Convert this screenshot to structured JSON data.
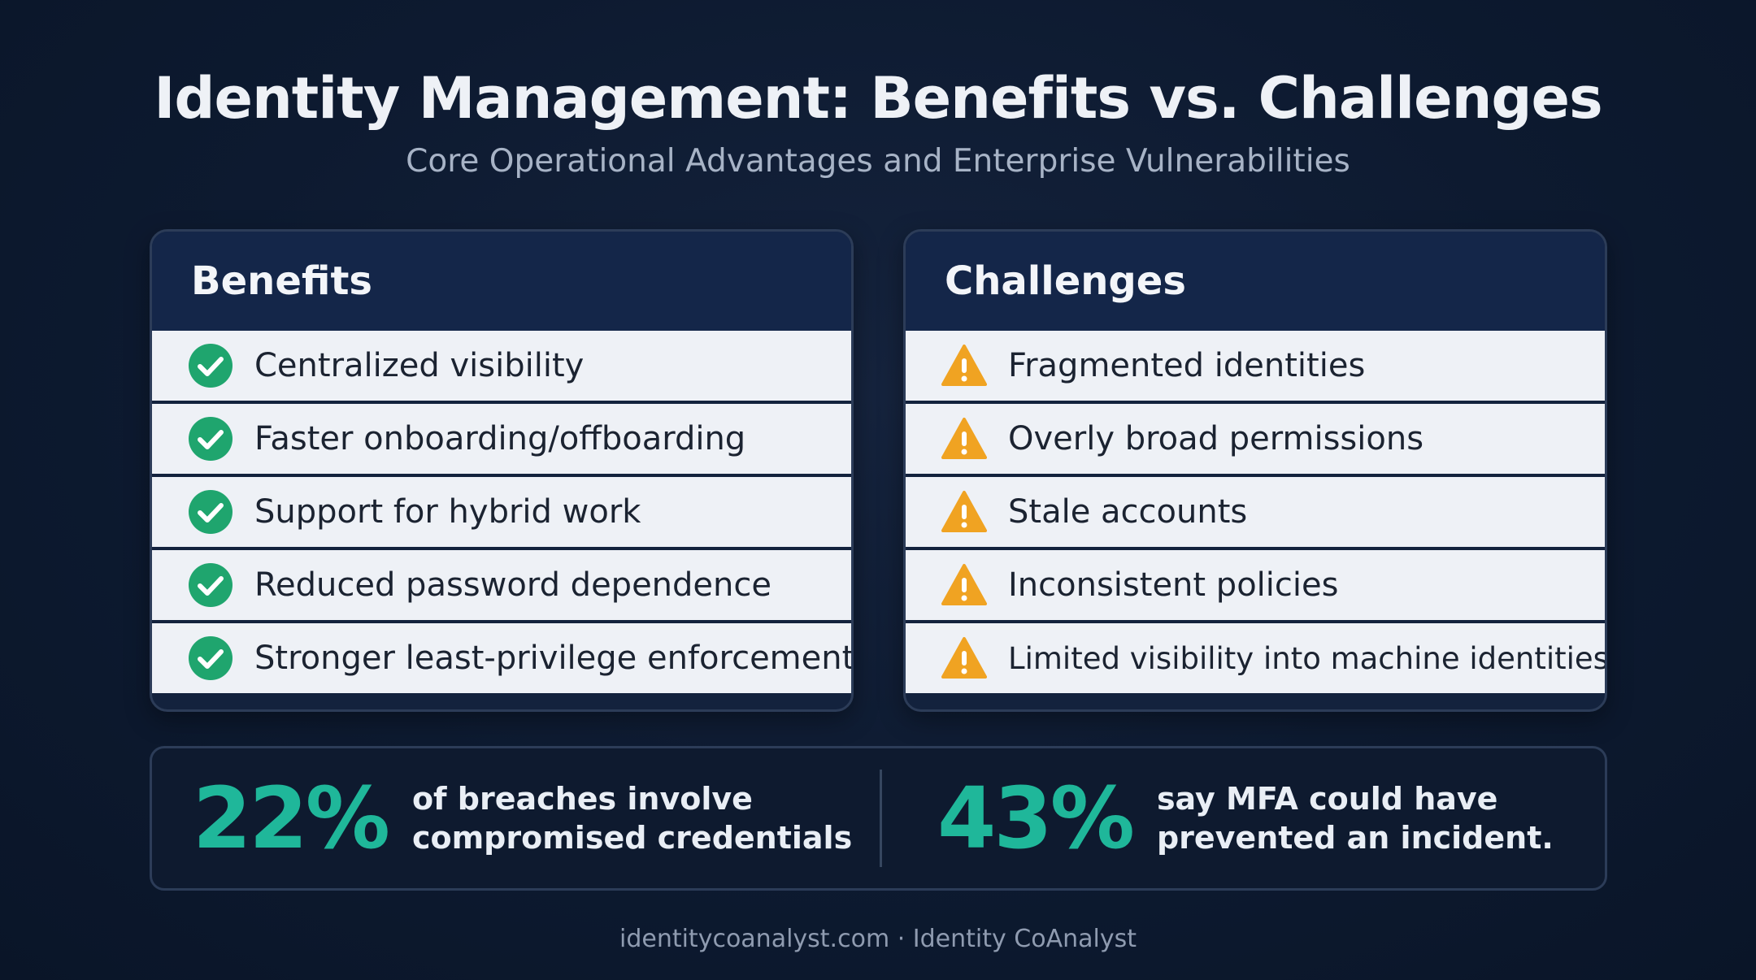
{
  "title": "Identity Management: Benefits vs. Challenges",
  "subtitle": "Core Operational Advantages and Enterprise Vulnerabilities",
  "benefits": {
    "heading": "Benefits",
    "icon": "check-circle-icon",
    "icon_color": "#1fa56e",
    "items": [
      "Centralized visibility",
      "Faster onboarding/offboarding",
      "Support for hybrid work",
      "Reduced password dependence",
      "Stronger least-privilege enforcement"
    ]
  },
  "challenges": {
    "heading": "Challenges",
    "icon": "warning-triangle-icon",
    "icon_color": "#f0a322",
    "items": [
      "Fragmented identities",
      "Overly broad permissions",
      "Stale accounts",
      "Inconsistent policies",
      "Limited visibility into machine identities"
    ]
  },
  "stats": [
    {
      "value": "22%",
      "line1": "of breaches involve",
      "line2": "compromised credentials"
    },
    {
      "value": "43%",
      "line1": "say MFA could have",
      "line2": "prevented an incident."
    }
  ],
  "accent_color": "#1fb79a",
  "footer": "identitycoanalyst.com · Identity CoAnalyst"
}
